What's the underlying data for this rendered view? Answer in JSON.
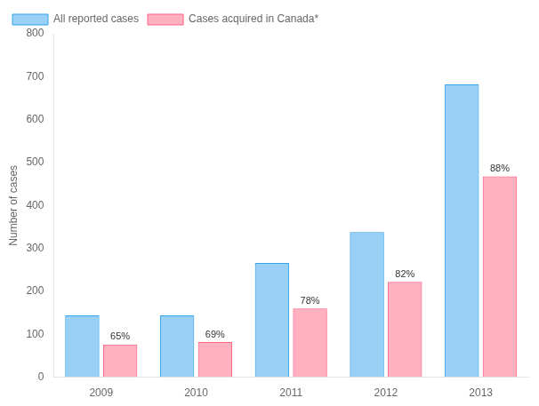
{
  "chart_data": {
    "type": "bar",
    "categories": [
      "2009",
      "2010",
      "2011",
      "2012",
      "2013"
    ],
    "series": [
      {
        "name": "All reported cases",
        "values": [
          144,
          144,
          266,
          338,
          682
        ]
      },
      {
        "name": "Cases acquired in Canada*",
        "values": [
          76,
          82,
          160,
          222,
          468
        ],
        "annotations": [
          "65%",
          "69%",
          "78%",
          "82%",
          "88%"
        ]
      }
    ],
    "ylabel": "Number of cases",
    "ylim": [
      0,
      800
    ],
    "yticks": [
      0,
      100,
      200,
      300,
      400,
      500,
      600,
      700,
      800
    ],
    "grid": false,
    "legend": "upper left"
  }
}
